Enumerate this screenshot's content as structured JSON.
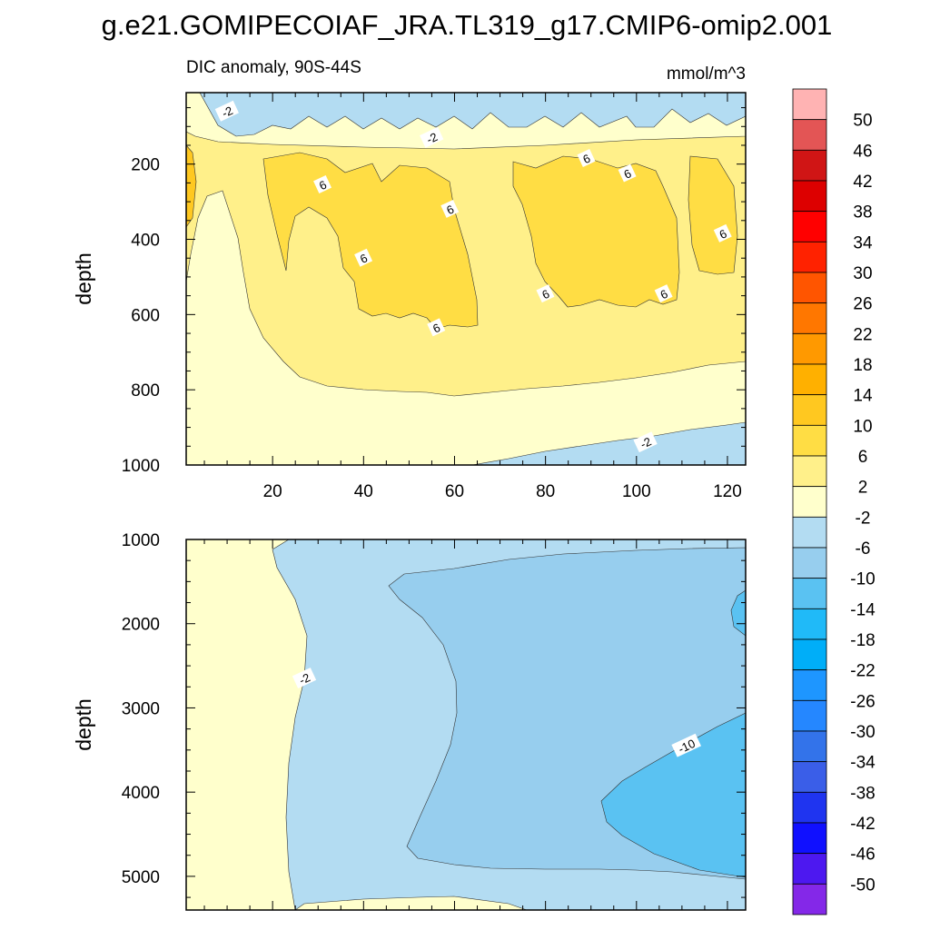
{
  "title": "g.e21.GOMIPECOIAF_JRA.TL319_g17.CMIP6-omip2.001",
  "chart_data": [
    {
      "type": "heatmap",
      "panel": "upper",
      "subtitle": "DIC anomaly, 90S-44S",
      "units": "mmol/m^3",
      "xlabel": "",
      "ylabel": "depth",
      "xlim": [
        1,
        124
      ],
      "ylim": [
        1000,
        10
      ],
      "xticks": [
        20,
        40,
        60,
        80,
        100,
        120
      ],
      "yticks": [
        200,
        400,
        600,
        800,
        1000
      ],
      "contour_labels": [
        {
          "text": "-2",
          "x": 10,
          "y": 60
        },
        {
          "text": "-2",
          "x": 55,
          "y": 130
        },
        {
          "text": "6",
          "x": 31,
          "y": 255
        },
        {
          "text": "6",
          "x": 40,
          "y": 450
        },
        {
          "text": "6",
          "x": 59,
          "y": 320
        },
        {
          "text": "6",
          "x": 56,
          "y": 635
        },
        {
          "text": "6",
          "x": 80,
          "y": 545
        },
        {
          "text": "6",
          "x": 89,
          "y": 185
        },
        {
          "text": "6",
          "x": 98,
          "y": 225
        },
        {
          "text": "6",
          "x": 106,
          "y": 545
        },
        {
          "text": "6",
          "x": 119,
          "y": 385
        },
        {
          "text": "-2",
          "x": 102,
          "y": 940
        }
      ]
    },
    {
      "type": "heatmap",
      "panel": "lower",
      "xlabel": "",
      "ylabel": "depth",
      "xlim": [
        1,
        124
      ],
      "ylim": [
        5400,
        1000
      ],
      "yticks": [
        1000,
        2000,
        3000,
        4000,
        5000
      ],
      "contour_labels": [
        {
          "text": "-2",
          "x": 27,
          "y": 2650
        },
        {
          "text": "-10",
          "x": 111,
          "y": 3450
        }
      ]
    }
  ],
  "colorbar": {
    "levels": [
      "50",
      "46",
      "42",
      "38",
      "34",
      "30",
      "26",
      "22",
      "18",
      "14",
      "10",
      "6",
      "2",
      "-2",
      "-6",
      "-10",
      "-14",
      "-18",
      "-22",
      "-26",
      "-30",
      "-34",
      "-38",
      "-42",
      "-46",
      "-50"
    ],
    "colors": [
      "#FFB3B3",
      "#E35555",
      "#D01515",
      "#DD0000",
      "#FF0000",
      "#FF2200",
      "#FF5500",
      "#FF7700",
      "#FF9900",
      "#FFB000",
      "#FFC820",
      "#FFDD44",
      "#FFF08A",
      "#FFFFCC",
      "#B3DCF2",
      "#97CEEE",
      "#5AC2F2",
      "#20BAF8",
      "#00AEF8",
      "#1E96FF",
      "#2587FF",
      "#3373EA",
      "#3A5EE8",
      "#1F34F0",
      "#1010FF",
      "#4D18F0",
      "#8428E8"
    ]
  }
}
